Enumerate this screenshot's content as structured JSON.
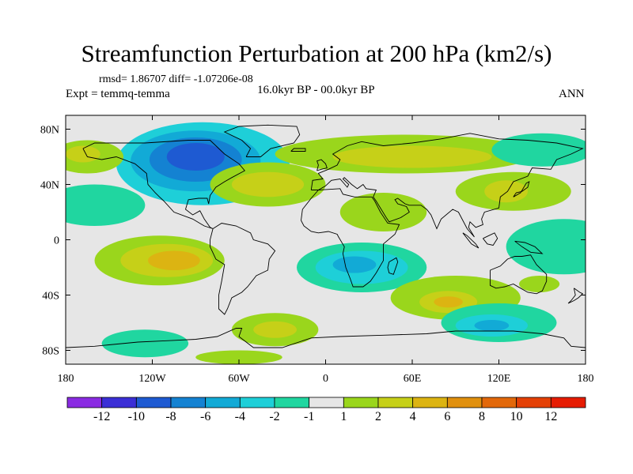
{
  "title": "Streamfunction Perturbation at 200 hPa (km2/s)",
  "stats_text": "rmsd= 1.86707 diff= -1.07206e-08",
  "expt_label": "Expt = temmq-temma",
  "period_label": "16.0kyr BP - 00.0kyr BP",
  "season_label": "ANN",
  "colors": {
    "lev_m12": "#8a2be2",
    "lev_m10": "#3b2fd6",
    "lev_m8": "#1e5ad2",
    "lev_m6": "#1482d2",
    "lev_m4": "#12aad6",
    "lev_m2": "#1ecfd8",
    "lev_m1": "#20d6a0",
    "neutral": "#e6e6e6",
    "lev_1": "#9ad61c",
    "lev_2": "#c6d018",
    "lev_4": "#dcb412",
    "lev_6": "#e0900e",
    "lev_8": "#e2680a",
    "lev_10": "#e44006",
    "lev_12": "#e61c02",
    "land_outline": "#000000"
  },
  "chart_data": {
    "type": "heatmap",
    "projection": "cylindrical-equidistant",
    "variable": "Streamfunction Perturbation at 200 hPa",
    "units": "km2/s",
    "x_range": [
      -180,
      180
    ],
    "y_range": [
      -90,
      90
    ],
    "x_ticks": [
      {
        "value": -180,
        "label": "180"
      },
      {
        "value": -120,
        "label": "120W"
      },
      {
        "value": -60,
        "label": "60W"
      },
      {
        "value": 0,
        "label": "0"
      },
      {
        "value": 60,
        "label": "60E"
      },
      {
        "value": 120,
        "label": "120E"
      },
      {
        "value": 180,
        "label": "180"
      }
    ],
    "y_ticks": [
      {
        "value": 80,
        "label": "80N"
      },
      {
        "value": 40,
        "label": "40N"
      },
      {
        "value": 0,
        "label": "0"
      },
      {
        "value": -40,
        "label": "40S"
      },
      {
        "value": -80,
        "label": "80S"
      }
    ],
    "colorbar": {
      "levels": [
        -12,
        -10,
        -8,
        -6,
        -4,
        -2,
        -1,
        1,
        2,
        4,
        6,
        8,
        10,
        12
      ],
      "labels": [
        "-12",
        "-10",
        "-8",
        "-6",
        "-4",
        "-2",
        "-1",
        "1",
        "2",
        "4",
        "6",
        "8",
        "10",
        "12"
      ],
      "bins": [
        "lev_m12",
        "lev_m10",
        "lev_m8",
        "lev_m6",
        "lev_m4",
        "lev_m2",
        "lev_m1",
        "neutral",
        "lev_1",
        "lev_2",
        "lev_4",
        "lev_6",
        "lev_8",
        "lev_10",
        "lev_12"
      ]
    },
    "anomaly_regions": [
      {
        "name": "north-america-low-outer",
        "lon": -85,
        "lat": 55,
        "rlon": 60,
        "rlat": 30,
        "bin": "lev_m2"
      },
      {
        "name": "north-america-low-mid",
        "lon": -90,
        "lat": 57,
        "rlon": 45,
        "rlat": 22,
        "bin": "lev_m4"
      },
      {
        "name": "north-america-low-inner",
        "lon": -90,
        "lat": 58,
        "rlon": 32,
        "rlat": 16,
        "bin": "lev_m6"
      },
      {
        "name": "north-america-low-core",
        "lon": -90,
        "lat": 60,
        "rlon": 20,
        "rlat": 10,
        "bin": "lev_m8"
      },
      {
        "name": "north-pacific-east-ridge",
        "lon": -165,
        "lat": 60,
        "rlon": 25,
        "rlat": 12,
        "bin": "lev_1"
      },
      {
        "name": "north-pacific-east-ridge-core",
        "lon": -168,
        "lat": 62,
        "rlon": 12,
        "rlat": 6,
        "bin": "lev_2"
      },
      {
        "name": "north-pacific-trough",
        "lon": -160,
        "lat": 25,
        "rlon": 35,
        "rlat": 15,
        "bin": "lev_m1"
      },
      {
        "name": "north-atlantic-ridge",
        "lon": -40,
        "lat": 40,
        "rlon": 40,
        "rlat": 16,
        "bin": "lev_1"
      },
      {
        "name": "north-atlantic-ridge-core",
        "lon": -40,
        "lat": 40,
        "rlon": 25,
        "rlat": 9,
        "bin": "lev_2"
      },
      {
        "name": "eurasia-ridge",
        "lon": 55,
        "lat": 62,
        "rlon": 90,
        "rlat": 14,
        "bin": "lev_1"
      },
      {
        "name": "eurasia-ridge-core",
        "lon": 60,
        "lat": 60,
        "rlon": 55,
        "rlat": 8,
        "bin": "lev_2"
      },
      {
        "name": "west-pacific-ridge",
        "lon": 130,
        "lat": 35,
        "rlon": 40,
        "rlat": 14,
        "bin": "lev_1"
      },
      {
        "name": "west-pacific-ridge-core",
        "lon": 125,
        "lat": 35,
        "rlon": 15,
        "rlat": 8,
        "bin": "lev_2"
      },
      {
        "name": "arabia-ridge",
        "lon": 40,
        "lat": 20,
        "rlon": 30,
        "rlat": 14,
        "bin": "lev_1"
      },
      {
        "name": "arctic-pacific-trough",
        "lon": 150,
        "lat": 65,
        "rlon": 35,
        "rlat": 12,
        "bin": "lev_m1"
      },
      {
        "name": "tropical-east-pacific-ridge",
        "lon": -115,
        "lat": -15,
        "rlon": 45,
        "rlat": 18,
        "bin": "lev_1"
      },
      {
        "name": "tropical-east-pacific-ridge-mid",
        "lon": -110,
        "lat": -15,
        "rlon": 32,
        "rlat": 12,
        "bin": "lev_2"
      },
      {
        "name": "tropical-east-pacific-ridge-core",
        "lon": -105,
        "lat": -15,
        "rlon": 18,
        "rlat": 7,
        "bin": "lev_4"
      },
      {
        "name": "west-pacific-tropical-trough",
        "lon": 165,
        "lat": -5,
        "rlon": 40,
        "rlat": 20,
        "bin": "lev_m1"
      },
      {
        "name": "south-atlantic-africa-low",
        "lon": 25,
        "lat": -20,
        "rlon": 45,
        "rlat": 18,
        "bin": "lev_m1"
      },
      {
        "name": "south-atlantic-africa-low-mid",
        "lon": 25,
        "lat": -20,
        "rlon": 32,
        "rlat": 12,
        "bin": "lev_m2"
      },
      {
        "name": "south-atlantic-africa-low-core",
        "lon": 20,
        "lat": -18,
        "rlon": 15,
        "rlat": 6,
        "bin": "lev_m4"
      },
      {
        "name": "south-indian-ridge",
        "lon": 90,
        "lat": -42,
        "rlon": 45,
        "rlat": 16,
        "bin": "lev_1"
      },
      {
        "name": "south-indian-ridge-core",
        "lon": 85,
        "lat": -45,
        "rlon": 20,
        "rlat": 8,
        "bin": "lev_2"
      },
      {
        "name": "south-indian-ridge-peak",
        "lon": 85,
        "lat": -45,
        "rlon": 10,
        "rlat": 4,
        "bin": "lev_4"
      },
      {
        "name": "australia-south-low",
        "lon": 120,
        "lat": -60,
        "rlon": 40,
        "rlat": 14,
        "bin": "lev_m1"
      },
      {
        "name": "australia-south-low-mid",
        "lon": 115,
        "lat": -62,
        "rlon": 25,
        "rlat": 8,
        "bin": "lev_m2"
      },
      {
        "name": "australia-south-low-core",
        "lon": 115,
        "lat": -62,
        "rlon": 12,
        "rlat": 4,
        "bin": "lev_m4"
      },
      {
        "name": "south-pacific-ridge",
        "lon": 148,
        "lat": -32,
        "rlon": 14,
        "rlat": 6,
        "bin": "lev_1"
      },
      {
        "name": "south-atlantic-ridge",
        "lon": -35,
        "lat": -65,
        "rlon": 30,
        "rlat": 12,
        "bin": "lev_1"
      },
      {
        "name": "south-atlantic-ridge-core",
        "lon": -35,
        "lat": -65,
        "rlon": 15,
        "rlat": 6,
        "bin": "lev_2"
      },
      {
        "name": "southeast-pacific-low",
        "lon": -125,
        "lat": -75,
        "rlon": 30,
        "rlat": 10,
        "bin": "lev_m1"
      },
      {
        "name": "antarctic-coast-ridge",
        "lon": -60,
        "lat": -85,
        "rlon": 30,
        "rlat": 5,
        "bin": "lev_1"
      }
    ]
  }
}
